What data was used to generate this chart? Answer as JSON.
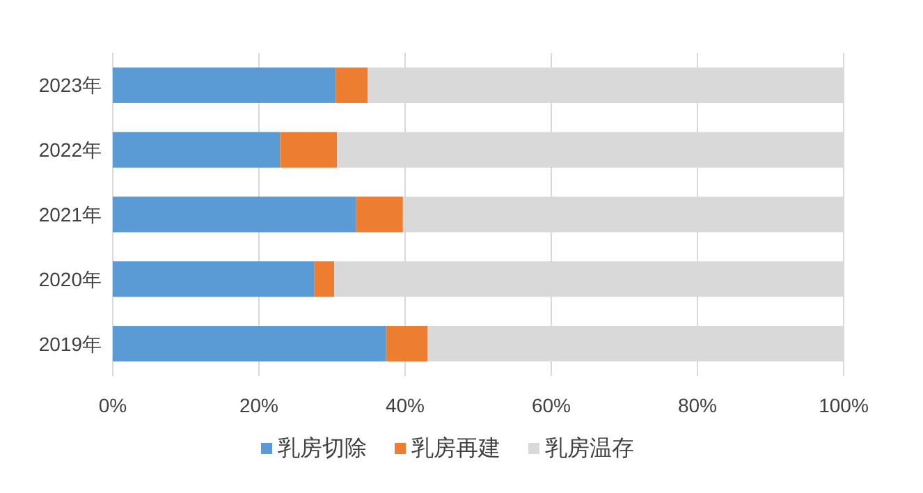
{
  "chart_data": {
    "type": "bar",
    "orientation": "horizontal",
    "stacked": true,
    "categories": [
      "2023年",
      "2022年",
      "2021年",
      "2020年",
      "2019年"
    ],
    "series": [
      {
        "name": "乳房切除",
        "color": "#5b9bd5",
        "values": [
          30.5,
          22.9,
          33.3,
          27.6,
          37.4
        ]
      },
      {
        "name": "乳房再建",
        "color": "#ed7d31",
        "values": [
          4.4,
          7.8,
          6.4,
          2.7,
          5.7
        ]
      },
      {
        "name": "乳房温存",
        "color": "#d9d9d9",
        "values": [
          65.1,
          69.3,
          60.3,
          69.7,
          56.9
        ]
      }
    ],
    "xlim": [
      0,
      100
    ],
    "xticks": [
      {
        "value": 0,
        "label": "0%"
      },
      {
        "value": 20,
        "label": "20%"
      },
      {
        "value": 40,
        "label": "40%"
      },
      {
        "value": 60,
        "label": "60%"
      },
      {
        "value": 80,
        "label": "80%"
      },
      {
        "value": 100,
        "label": "100%"
      }
    ],
    "grid": "x",
    "legend": "bottom"
  }
}
